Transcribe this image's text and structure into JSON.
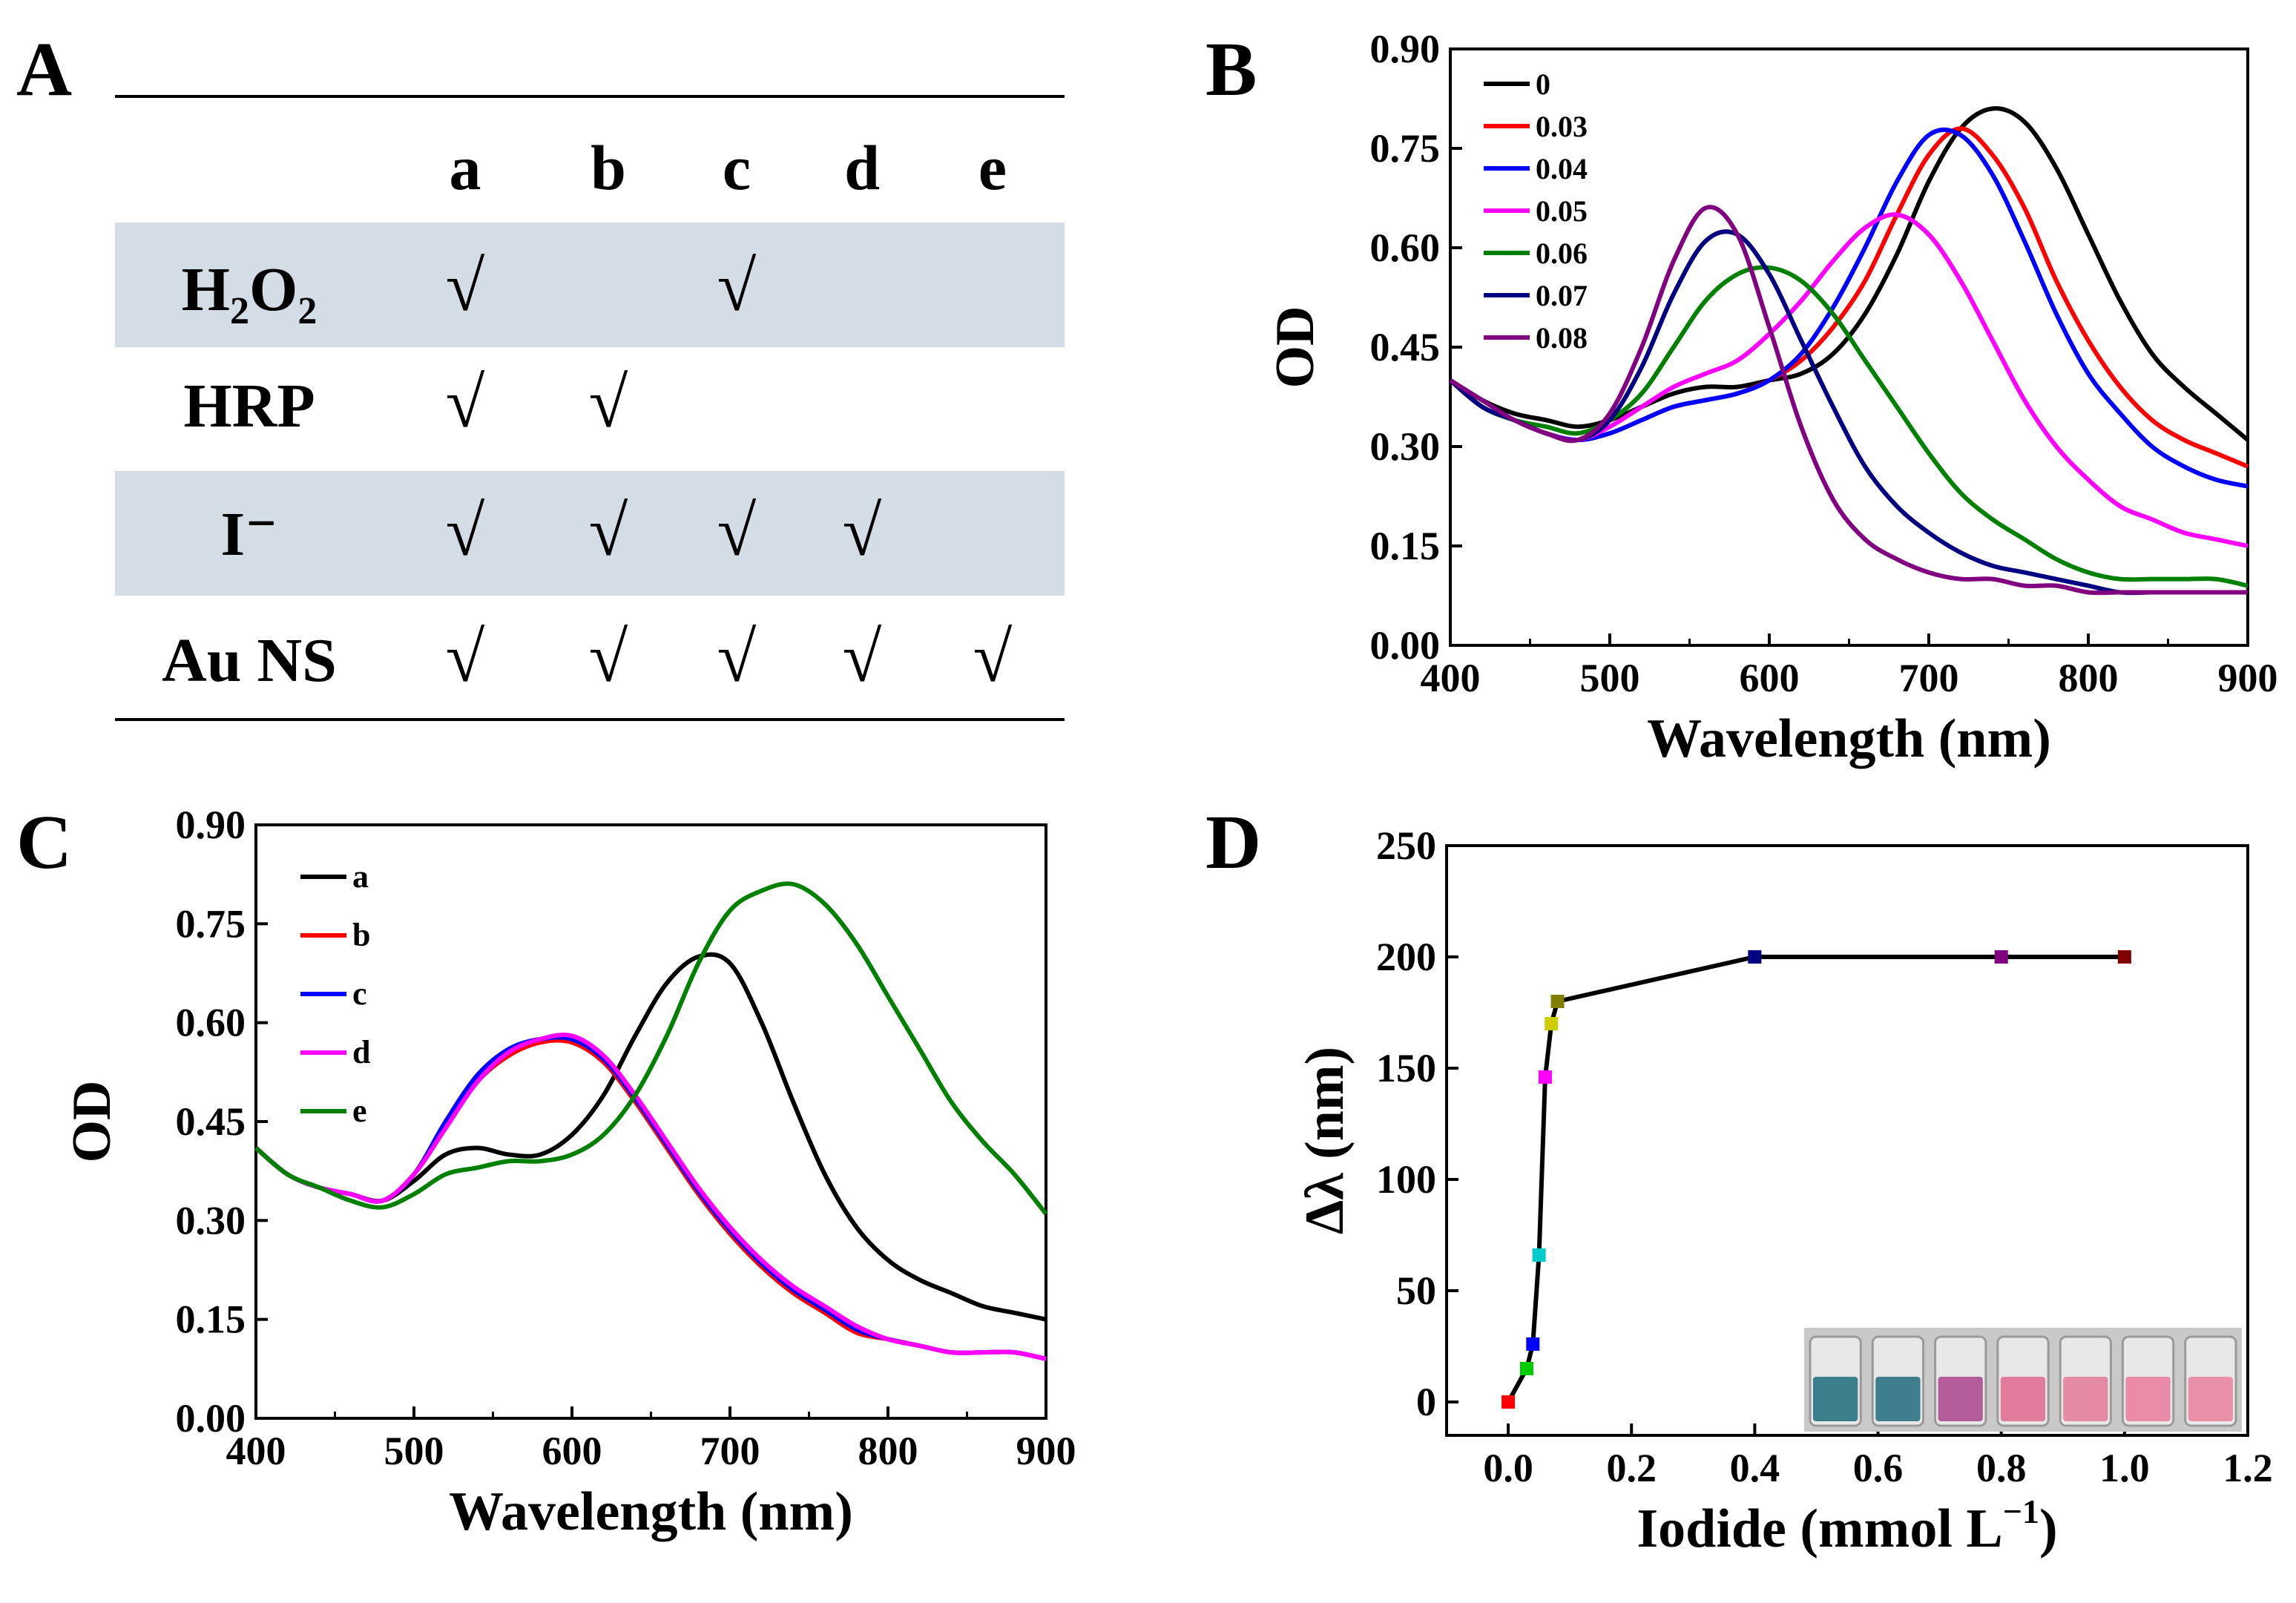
{
  "panel_labels": {
    "A": "A",
    "B": "B",
    "C": "C",
    "D": "D"
  },
  "table": {
    "columns": [
      "a",
      "b",
      "c",
      "d",
      "e"
    ],
    "check_mark": "√",
    "rows": [
      {
        "label": "H2O2",
        "label_main": "H",
        "label_sub1": "2",
        "label_mid": "O",
        "label_sub2": "2",
        "shaded": true,
        "checks": [
          true,
          false,
          true,
          false,
          false
        ]
      },
      {
        "label": "HRP",
        "shaded": false,
        "checks": [
          true,
          true,
          false,
          false,
          false
        ]
      },
      {
        "label": "I⁻",
        "shaded": true,
        "checks": [
          true,
          true,
          true,
          true,
          false
        ]
      },
      {
        "label": "Au NS",
        "shaded": false,
        "checks": [
          true,
          true,
          true,
          true,
          true
        ]
      }
    ],
    "shade_color": "#d4dde6"
  },
  "chart_data": [
    {
      "panel": "B",
      "type": "line",
      "xlabel": "Wavelength (nm)",
      "ylabel": "OD",
      "xlim": [
        400,
        900
      ],
      "ylim": [
        0.0,
        0.9
      ],
      "xticks": [
        "400",
        "500",
        "600",
        "700",
        "800",
        "900"
      ],
      "yticks": [
        "0.00",
        "0.15",
        "0.30",
        "0.45",
        "0.60",
        "0.75",
        "0.90"
      ],
      "legend_position": "top-left",
      "series": [
        {
          "name": "0",
          "color": "#000000",
          "x": [
            400,
            420,
            440,
            460,
            480,
            500,
            520,
            540,
            560,
            580,
            600,
            620,
            640,
            660,
            680,
            700,
            720,
            740,
            760,
            780,
            800,
            820,
            840,
            860,
            880,
            900
          ],
          "values": [
            0.4,
            0.37,
            0.35,
            0.34,
            0.33,
            0.34,
            0.36,
            0.38,
            0.39,
            0.39,
            0.4,
            0.41,
            0.44,
            0.5,
            0.59,
            0.7,
            0.78,
            0.81,
            0.79,
            0.72,
            0.62,
            0.52,
            0.44,
            0.39,
            0.35,
            0.31
          ]
        },
        {
          "name": "0.03",
          "color": "#ff0000",
          "x": [
            400,
            420,
            440,
            460,
            480,
            500,
            520,
            540,
            560,
            580,
            600,
            620,
            640,
            660,
            680,
            700,
            720,
            740,
            760,
            780,
            800,
            820,
            840,
            860,
            880,
            900
          ],
          "values": [
            0.4,
            0.36,
            0.34,
            0.32,
            0.31,
            0.32,
            0.34,
            0.36,
            0.37,
            0.38,
            0.4,
            0.43,
            0.48,
            0.55,
            0.65,
            0.74,
            0.78,
            0.74,
            0.66,
            0.55,
            0.46,
            0.39,
            0.34,
            0.31,
            0.29,
            0.27
          ]
        },
        {
          "name": "0.04",
          "color": "#0000ff",
          "x": [
            400,
            420,
            440,
            460,
            480,
            500,
            520,
            540,
            560,
            580,
            600,
            620,
            640,
            660,
            680,
            700,
            720,
            740,
            760,
            780,
            800,
            820,
            840,
            860,
            880,
            900
          ],
          "values": [
            0.4,
            0.36,
            0.34,
            0.32,
            0.31,
            0.32,
            0.34,
            0.36,
            0.37,
            0.38,
            0.4,
            0.44,
            0.51,
            0.6,
            0.7,
            0.77,
            0.77,
            0.71,
            0.61,
            0.5,
            0.41,
            0.35,
            0.3,
            0.27,
            0.25,
            0.24
          ]
        },
        {
          "name": "0.05",
          "color": "#ff00ff",
          "x": [
            400,
            420,
            440,
            460,
            480,
            500,
            520,
            540,
            560,
            580,
            600,
            620,
            640,
            660,
            680,
            700,
            720,
            740,
            760,
            780,
            800,
            820,
            840,
            860,
            880,
            900
          ],
          "values": [
            0.4,
            0.36,
            0.34,
            0.32,
            0.31,
            0.33,
            0.36,
            0.39,
            0.41,
            0.43,
            0.47,
            0.52,
            0.58,
            0.63,
            0.65,
            0.62,
            0.55,
            0.46,
            0.37,
            0.3,
            0.25,
            0.21,
            0.19,
            0.17,
            0.16,
            0.15
          ]
        },
        {
          "name": "0.06",
          "color": "#008000",
          "x": [
            400,
            420,
            440,
            460,
            480,
            500,
            520,
            540,
            560,
            580,
            600,
            620,
            640,
            660,
            680,
            700,
            720,
            740,
            760,
            780,
            800,
            820,
            840,
            860,
            880,
            900
          ],
          "values": [
            0.4,
            0.36,
            0.34,
            0.33,
            0.32,
            0.34,
            0.38,
            0.45,
            0.52,
            0.56,
            0.57,
            0.55,
            0.5,
            0.43,
            0.36,
            0.29,
            0.23,
            0.19,
            0.16,
            0.13,
            0.11,
            0.1,
            0.1,
            0.1,
            0.1,
            0.09
          ]
        },
        {
          "name": "0.07",
          "color": "#000080",
          "x": [
            400,
            420,
            440,
            460,
            480,
            500,
            520,
            540,
            560,
            580,
            600,
            620,
            640,
            660,
            680,
            700,
            720,
            740,
            760,
            780,
            800,
            820,
            840,
            860,
            880,
            900
          ],
          "values": [
            0.4,
            0.36,
            0.34,
            0.32,
            0.31,
            0.34,
            0.42,
            0.53,
            0.61,
            0.62,
            0.56,
            0.46,
            0.36,
            0.27,
            0.21,
            0.17,
            0.14,
            0.12,
            0.11,
            0.1,
            0.09,
            0.08,
            0.08,
            0.08,
            0.08,
            0.08
          ]
        },
        {
          "name": "0.08",
          "color": "#800080",
          "x": [
            400,
            420,
            440,
            460,
            480,
            500,
            520,
            540,
            560,
            580,
            600,
            620,
            640,
            660,
            680,
            700,
            720,
            740,
            760,
            780,
            800,
            820,
            840,
            860,
            880,
            900
          ],
          "values": [
            0.4,
            0.37,
            0.34,
            0.32,
            0.31,
            0.35,
            0.45,
            0.58,
            0.66,
            0.62,
            0.48,
            0.33,
            0.22,
            0.16,
            0.13,
            0.11,
            0.1,
            0.1,
            0.09,
            0.09,
            0.08,
            0.08,
            0.08,
            0.08,
            0.08,
            0.08
          ]
        }
      ]
    },
    {
      "panel": "C",
      "type": "line",
      "xlabel": "Wavelength (nm)",
      "ylabel": "OD",
      "xlim": [
        400,
        900
      ],
      "ylim": [
        0.0,
        0.9
      ],
      "xticks": [
        "400",
        "500",
        "600",
        "700",
        "800",
        "900"
      ],
      "yticks": [
        "0.00",
        "0.15",
        "0.30",
        "0.45",
        "0.60",
        "0.75",
        "0.90"
      ],
      "legend_position": "top-left",
      "series": [
        {
          "name": "a",
          "color": "#000000",
          "x": [
            400,
            420,
            440,
            460,
            480,
            500,
            520,
            540,
            560,
            580,
            600,
            620,
            640,
            660,
            680,
            700,
            720,
            740,
            760,
            780,
            800,
            820,
            840,
            860,
            880,
            900
          ],
          "values": [
            0.41,
            0.37,
            0.35,
            0.34,
            0.33,
            0.36,
            0.4,
            0.41,
            0.4,
            0.4,
            0.43,
            0.49,
            0.58,
            0.66,
            0.7,
            0.69,
            0.6,
            0.48,
            0.37,
            0.29,
            0.24,
            0.21,
            0.19,
            0.17,
            0.16,
            0.15
          ]
        },
        {
          "name": "b",
          "color": "#ff0000",
          "x": [
            400,
            420,
            440,
            460,
            480,
            500,
            520,
            540,
            560,
            580,
            600,
            620,
            640,
            660,
            680,
            700,
            720,
            740,
            760,
            780,
            800,
            820,
            840,
            860,
            880,
            900
          ],
          "values": [
            0.41,
            0.37,
            0.35,
            0.34,
            0.33,
            0.37,
            0.44,
            0.51,
            0.55,
            0.57,
            0.57,
            0.54,
            0.48,
            0.41,
            0.34,
            0.28,
            0.23,
            0.19,
            0.16,
            0.13,
            0.12,
            0.11,
            0.1,
            0.1,
            0.1,
            0.09
          ]
        },
        {
          "name": "c",
          "color": "#0000ff",
          "x": [
            400,
            420,
            440,
            460,
            480,
            500,
            520,
            540,
            560,
            580,
            600,
            620,
            640,
            660,
            680,
            700,
            720,
            740,
            760,
            780,
            800,
            820,
            840,
            860,
            880,
            900
          ],
          "values": [
            0.41,
            0.37,
            0.35,
            0.34,
            0.33,
            0.37,
            0.45,
            0.52,
            0.56,
            0.575,
            0.575,
            0.545,
            0.485,
            0.415,
            0.345,
            0.285,
            0.235,
            0.195,
            0.165,
            0.135,
            0.12,
            0.11,
            0.1,
            0.1,
            0.1,
            0.09
          ]
        },
        {
          "name": "d",
          "color": "#ff00ff",
          "x": [
            400,
            420,
            440,
            460,
            480,
            500,
            520,
            540,
            560,
            580,
            600,
            620,
            640,
            660,
            680,
            700,
            720,
            740,
            760,
            780,
            800,
            820,
            840,
            860,
            880,
            900
          ],
          "values": [
            0.41,
            0.37,
            0.35,
            0.34,
            0.33,
            0.37,
            0.44,
            0.51,
            0.555,
            0.575,
            0.58,
            0.55,
            0.49,
            0.42,
            0.35,
            0.29,
            0.24,
            0.2,
            0.17,
            0.14,
            0.12,
            0.11,
            0.1,
            0.1,
            0.1,
            0.09
          ]
        },
        {
          "name": "e",
          "color": "#008000",
          "x": [
            400,
            420,
            440,
            460,
            480,
            500,
            520,
            540,
            560,
            580,
            600,
            620,
            640,
            660,
            680,
            700,
            720,
            740,
            760,
            780,
            800,
            820,
            840,
            860,
            880,
            900
          ],
          "values": [
            0.41,
            0.37,
            0.35,
            0.33,
            0.32,
            0.34,
            0.37,
            0.38,
            0.39,
            0.39,
            0.4,
            0.43,
            0.49,
            0.58,
            0.69,
            0.77,
            0.8,
            0.81,
            0.78,
            0.72,
            0.64,
            0.56,
            0.48,
            0.42,
            0.37,
            0.31
          ]
        }
      ]
    },
    {
      "panel": "D",
      "type": "line",
      "xlabel": "Iodide (mmol L",
      "xlabel_sup": "−1",
      "xlabel_end": ")",
      "ylabel": "Δλ (nm)",
      "xlim": [
        -0.1,
        1.2
      ],
      "ylim": [
        -15,
        250
      ],
      "xticks": [
        "0.0",
        "0.2",
        "0.4",
        "0.6",
        "0.8",
        "1.0",
        "1.2"
      ],
      "xtick_values": [
        0.0,
        0.2,
        0.4,
        0.6,
        0.8,
        1.0,
        1.2
      ],
      "yticks": [
        "0",
        "50",
        "100",
        "150",
        "200",
        "250"
      ],
      "ytick_values": [
        0,
        50,
        100,
        150,
        200,
        250
      ],
      "line_color": "#000000",
      "x": [
        0.0,
        0.03,
        0.04,
        0.05,
        0.06,
        0.07,
        0.08,
        0.4,
        0.8,
        1.0
      ],
      "values": [
        0,
        15,
        26,
        66,
        146,
        170,
        180,
        200,
        200,
        200
      ],
      "marker_colors": [
        "#ff0000",
        "#00cc00",
        "#0000ff",
        "#00cccc",
        "#ff00ff",
        "#cccc00",
        "#808000",
        "#000080",
        "#800080",
        "#800000"
      ],
      "inset": {
        "tubes": 7,
        "tube_colors": [
          "#3b7f8c",
          "#3f7e8e",
          "#b45b9a",
          "#e07c9c",
          "#e58aa4",
          "#e98aa6",
          "#ea8fa8"
        ]
      }
    }
  ]
}
